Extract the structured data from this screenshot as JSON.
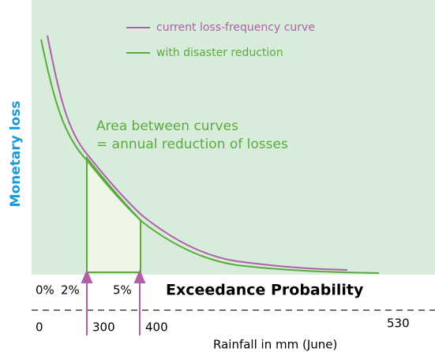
{
  "legend": {
    "items": [
      {
        "label": "current loss-frequency curve",
        "color": "#b05fa8"
      },
      {
        "label": "with disaster reduction",
        "color": "#5aab3c"
      }
    ]
  },
  "annotation": {
    "lines": [
      "Area between curves",
      "= annual reduction of losses"
    ]
  },
  "y_axis_label": "Monetary loss",
  "probability_axis": {
    "title": "Exceedance Probability",
    "labels": [
      "0%",
      "2%",
      "5%"
    ]
  },
  "rainfall_axis": {
    "title": "Rainfall in mm (June)",
    "labels": [
      "0",
      "300",
      "400",
      "530"
    ]
  }
}
